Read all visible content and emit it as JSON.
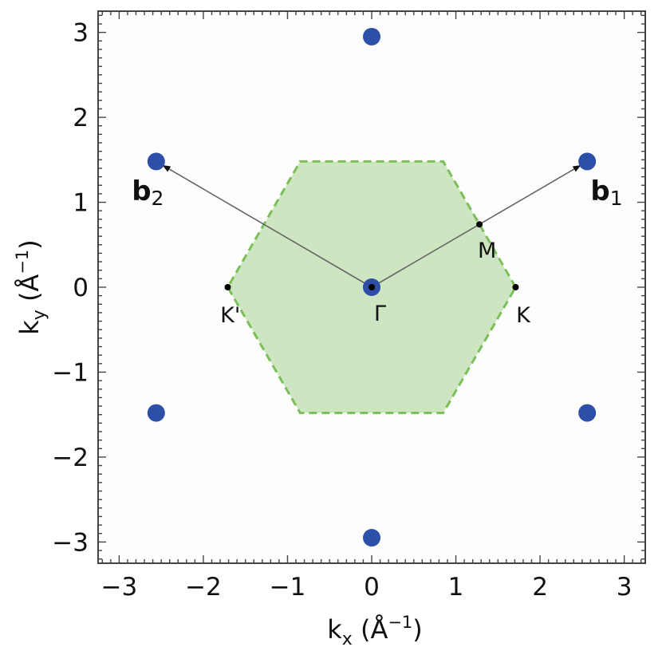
{
  "chart_data": {
    "type": "scatter",
    "xlabel": {
      "base": "k",
      "sub": "x",
      "unit_open": " (Å",
      "sup": "−1",
      "unit_close": ")"
    },
    "ylabel": {
      "base": "k",
      "sub": "y",
      "unit_open": " (Å",
      "sup": "−1",
      "unit_close": ")"
    },
    "xlim": [
      -3.25,
      3.25
    ],
    "ylim": [
      -3.25,
      3.25
    ],
    "x_ticks": [
      -3,
      -2,
      -1,
      0,
      1,
      2,
      3
    ],
    "y_ticks": [
      -3,
      -2,
      -1,
      0,
      1,
      2,
      3
    ],
    "x_tick_labels": [
      "−3",
      "−2",
      "−1",
      "0",
      "1",
      "2",
      "3"
    ],
    "y_tick_labels": [
      "−3",
      "−2",
      "−1",
      "0",
      "1",
      "2",
      "3"
    ],
    "reciprocal_lattice_points": [
      {
        "x": 0,
        "y": 0
      },
      {
        "x": 0,
        "y": 2.95
      },
      {
        "x": 0,
        "y": -2.95
      },
      {
        "x": 2.56,
        "y": 1.48
      },
      {
        "x": -2.56,
        "y": 1.48
      },
      {
        "x": 2.56,
        "y": -1.48
      },
      {
        "x": -2.56,
        "y": -1.48
      }
    ],
    "brillouin_zone": [
      {
        "x": 1.71,
        "y": 0
      },
      {
        "x": 0.85,
        "y": 1.48
      },
      {
        "x": -0.85,
        "y": 1.48
      },
      {
        "x": -1.71,
        "y": 0
      },
      {
        "x": -0.85,
        "y": -1.48
      },
      {
        "x": 0.85,
        "y": -1.48
      }
    ],
    "vectors": [
      {
        "name": "b1",
        "label_main": "b",
        "label_sub": "1",
        "from": [
          0,
          0
        ],
        "to": [
          2.56,
          1.48
        ],
        "label_at": [
          2.6,
          1.12
        ]
      },
      {
        "name": "b2",
        "label_main": "b",
        "label_sub": "2",
        "from": [
          0,
          0
        ],
        "to": [
          -2.56,
          1.48
        ],
        "label_at": [
          -2.85,
          1.12
        ]
      }
    ],
    "high_symmetry_points": [
      {
        "name": "Γ",
        "x": 0,
        "y": 0,
        "label_at": [
          0.1,
          -0.3
        ]
      },
      {
        "name": "M",
        "x": 1.28,
        "y": 0.74,
        "label_at": [
          1.37,
          0.44
        ]
      },
      {
        "name": "K",
        "x": 1.71,
        "y": 0,
        "label_at": [
          1.8,
          -0.32
        ]
      },
      {
        "name": "K'",
        "x": -1.71,
        "y": 0,
        "label_at": [
          -1.68,
          -0.32
        ]
      }
    ],
    "colors": {
      "lattice_point": "#2e4fa8",
      "zone_fill": "#cde5c0",
      "zone_edge": "#7cbf5a",
      "vector": "#666666",
      "frame": "#444444",
      "plot_bg": "#fdfdfd"
    }
  }
}
